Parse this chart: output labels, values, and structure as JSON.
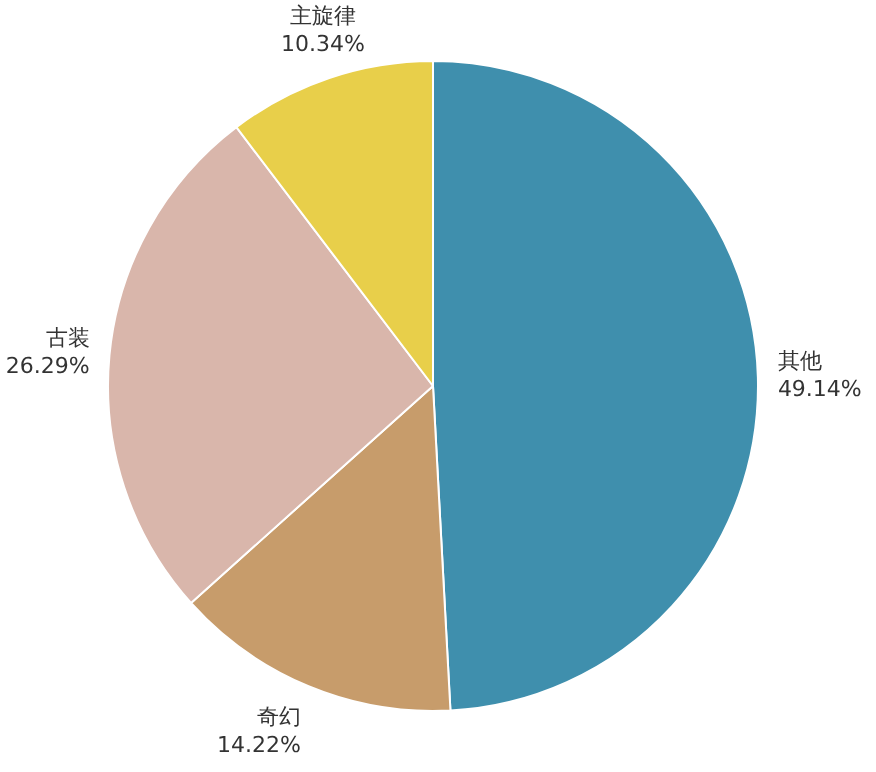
{
  "chart_data": {
    "type": "pie",
    "categories": [
      "其他",
      "奇幻",
      "古装",
      "主旋律"
    ],
    "values": [
      49.14,
      14.22,
      26.29,
      10.34
    ],
    "colors": [
      "#3f8fad",
      "#c79c6b",
      "#d9b6ab",
      "#e8cf4a"
    ],
    "value_labels": [
      "49.14%",
      "14.22%",
      "26.29%",
      "10.34%"
    ],
    "legend": false
  }
}
